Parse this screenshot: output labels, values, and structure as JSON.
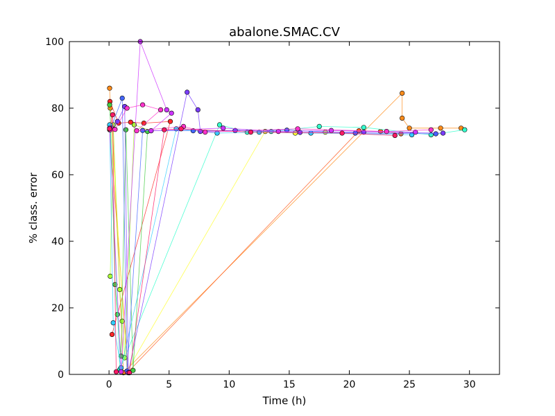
{
  "chart_data": {
    "type": "scatter",
    "title": "abalone.SMAC.CV",
    "xlabel": "Time (h)",
    "ylabel": "% class. error",
    "xlim": [
      -3.3,
      32.5
    ],
    "ylim": [
      0,
      100
    ],
    "xticks": [
      0,
      5,
      10,
      15,
      20,
      25,
      30
    ],
    "yticks": [
      0,
      20,
      40,
      60,
      80,
      100
    ],
    "grid": false,
    "series": [
      {
        "color": "#ff8c1a",
        "points": [
          [
            0.05,
            86
          ],
          [
            0.1,
            80
          ],
          [
            0.3,
            74
          ],
          [
            1.2,
            0.5
          ],
          [
            24.4,
            84.5
          ],
          [
            24.4,
            77
          ],
          [
            25.0,
            74
          ],
          [
            27.6,
            74
          ],
          [
            29.3,
            74
          ]
        ]
      },
      {
        "color": "#ff5a1e",
        "points": [
          [
            0.05,
            73.5
          ],
          [
            1.6,
            0.8
          ],
          [
            20.8,
            73.2
          ],
          [
            22.6,
            73
          ],
          [
            24.3,
            72.3
          ]
        ]
      },
      {
        "color": "#ff2a2a",
        "points": [
          [
            0.08,
            82
          ],
          [
            0.8,
            75.5
          ],
          [
            1.8,
            75.8
          ],
          [
            2.9,
            75.5
          ],
          [
            5.1,
            76
          ],
          [
            0.25,
            12
          ]
        ]
      },
      {
        "color": "#ffff33",
        "points": [
          [
            0.2,
            74.5
          ],
          [
            1.5,
            1
          ],
          [
            13.0,
            73
          ],
          [
            15.5,
            72.5
          ],
          [
            18.0,
            72.8
          ]
        ]
      },
      {
        "color": "#aaff33",
        "points": [
          [
            0.1,
            29.5
          ],
          [
            0.35,
            75
          ],
          [
            0.9,
            25.5
          ],
          [
            1.1,
            16
          ],
          [
            1.3,
            5
          ],
          [
            2.1,
            75
          ],
          [
            3.5,
            73.2
          ]
        ]
      },
      {
        "color": "#44cc44",
        "points": [
          [
            0.05,
            81
          ],
          [
            0.15,
            73.8
          ],
          [
            0.5,
            27
          ],
          [
            0.7,
            18
          ],
          [
            1.0,
            5.5
          ],
          [
            1.4,
            73.5
          ],
          [
            2.0,
            1.2
          ],
          [
            3.2,
            73
          ]
        ]
      },
      {
        "color": "#33ffcc",
        "points": [
          [
            0.1,
            73.8
          ],
          [
            0.9,
            1.5
          ],
          [
            9.2,
            75
          ],
          [
            11.5,
            72.8
          ],
          [
            13.5,
            73
          ],
          [
            17.5,
            74.5
          ],
          [
            21.2,
            74.2
          ],
          [
            26.8,
            72
          ],
          [
            29.6,
            73.5
          ]
        ]
      },
      {
        "color": "#33ccff",
        "points": [
          [
            0.05,
            75
          ],
          [
            0.35,
            15.5
          ],
          [
            1.0,
            2
          ],
          [
            5.6,
            73.8
          ],
          [
            9.0,
            72.5
          ],
          [
            12.5,
            72.8
          ],
          [
            16.8,
            72.5
          ],
          [
            25.2,
            72
          ]
        ]
      },
      {
        "color": "#4466ff",
        "points": [
          [
            0.15,
            74
          ],
          [
            1.1,
            83
          ],
          [
            1.5,
            1
          ],
          [
            2.8,
            73.3
          ],
          [
            7.0,
            73.2
          ],
          [
            14.8,
            73.4
          ],
          [
            20.5,
            72.5
          ],
          [
            27.2,
            72.3
          ]
        ]
      },
      {
        "color": "#7a3cff",
        "points": [
          [
            0.2,
            74
          ],
          [
            0.7,
            76
          ],
          [
            1.3,
            80.5
          ],
          [
            1.6,
            0.5
          ],
          [
            6.5,
            84.8
          ],
          [
            7.4,
            79.5
          ],
          [
            7.6,
            73
          ],
          [
            10.5,
            73.3
          ],
          [
            15.9,
            72.7
          ],
          [
            21.2,
            72.8
          ],
          [
            27.8,
            72.5
          ]
        ]
      },
      {
        "color": "#cc33ff",
        "points": [
          [
            0.05,
            74
          ],
          [
            1.0,
            0.8
          ],
          [
            2.6,
            100
          ],
          [
            4.8,
            79.5
          ],
          [
            5.2,
            78.5
          ],
          [
            3.5,
            73.2
          ],
          [
            9.5,
            74
          ],
          [
            14.1,
            73
          ],
          [
            18.5,
            73.3
          ],
          [
            25.5,
            72.8
          ]
        ]
      },
      {
        "color": "#ff33cc",
        "points": [
          [
            0.1,
            73.5
          ],
          [
            0.5,
            73.6
          ],
          [
            1.5,
            80
          ],
          [
            2.8,
            81
          ],
          [
            4.3,
            79.5
          ],
          [
            2.3,
            73.2
          ],
          [
            6.2,
            74.5
          ],
          [
            8.0,
            72.8
          ],
          [
            15.7,
            73.8
          ],
          [
            23.1,
            73
          ],
          [
            26.8,
            73.5
          ]
        ]
      },
      {
        "color": "#ff1a66",
        "points": [
          [
            0.05,
            73.8
          ],
          [
            0.3,
            78
          ],
          [
            0.6,
            0.8
          ],
          [
            1.7,
            0.5
          ],
          [
            4.6,
            73.5
          ],
          [
            6.0,
            73.8
          ],
          [
            11.8,
            72.8
          ],
          [
            19.4,
            72.5
          ],
          [
            23.8,
            71.8
          ]
        ]
      }
    ]
  }
}
